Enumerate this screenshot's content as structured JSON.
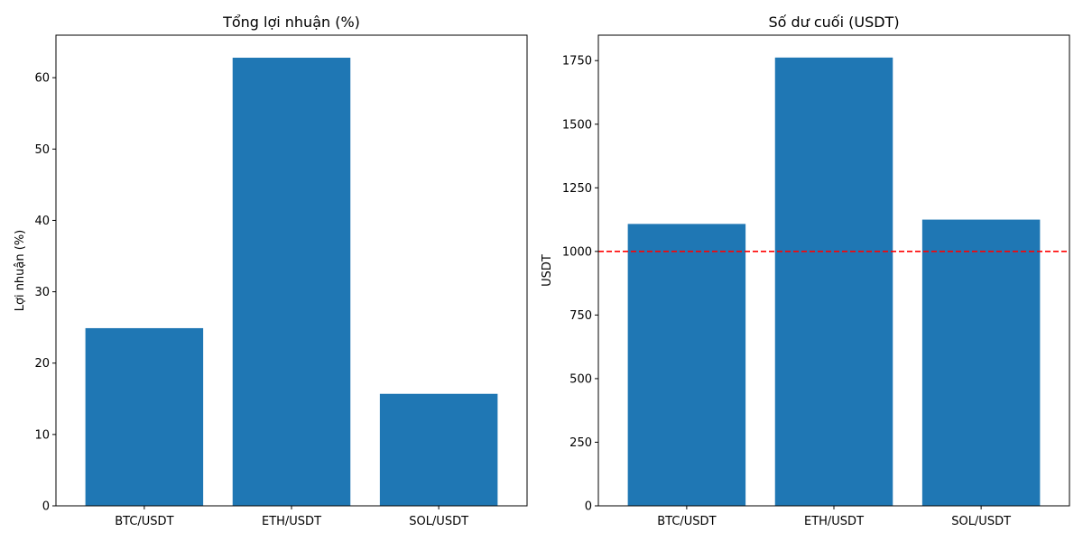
{
  "chart_data": [
    {
      "type": "bar",
      "title": "Tổng lợi nhuận (%)",
      "xlabel": "",
      "ylabel": "Lợi nhuận (%)",
      "categories": [
        "BTC/USDT",
        "ETH/USDT",
        "SOL/USDT"
      ],
      "values": [
        24.9,
        62.8,
        15.7
      ],
      "ylim": [
        0,
        65.96
      ],
      "yticks": [
        0,
        10,
        20,
        30,
        40,
        50,
        60
      ],
      "grid": false,
      "bar_color": "#1f77b4"
    },
    {
      "type": "bar",
      "title": "Số dư cuối (USDT)",
      "xlabel": "",
      "ylabel": "USDT",
      "categories": [
        "BTC/USDT",
        "ETH/USDT",
        "SOL/USDT"
      ],
      "values": [
        1108,
        1762,
        1125
      ],
      "ylim": [
        0,
        1850
      ],
      "yticks": [
        0,
        250,
        500,
        750,
        1000,
        1250,
        1500,
        1750
      ],
      "reference_line": {
        "value": 1000,
        "color": "#ff0000",
        "style": "dashed"
      },
      "grid": false,
      "bar_color": "#1f77b4"
    }
  ]
}
